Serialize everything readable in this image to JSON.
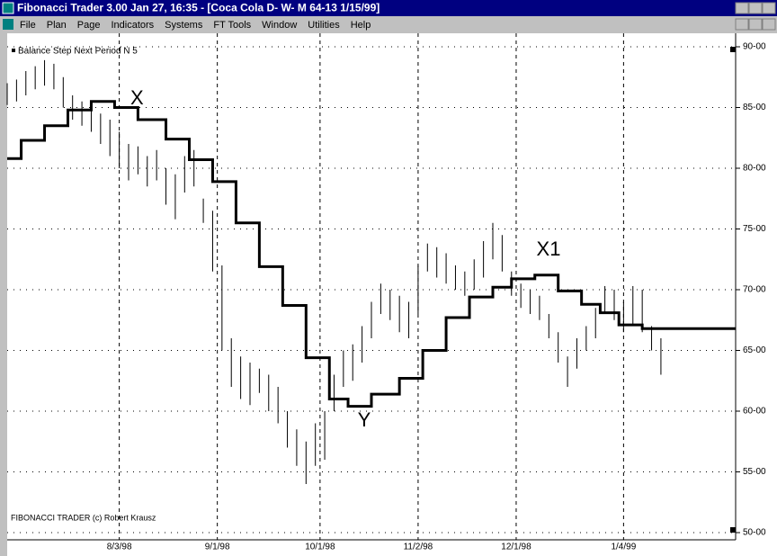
{
  "window": {
    "title": "Fibonacci Trader 3.00 Jan 27,  16:35 - [Coca Cola D- W- M  64-13 1/15/99]"
  },
  "menu": [
    "File",
    "Plan",
    "Page",
    "Indicators",
    "Systems",
    "FT Tools",
    "Window",
    "Utilities",
    "Help"
  ],
  "chart_data": {
    "type": "ohlc",
    "legend": "Balance Step Next Period N 5",
    "annotations": [
      "X",
      "Y",
      "X1"
    ],
    "footer": "FIBONACCI TRADER (c) Robert Krausz",
    "xlim": [
      0,
      156
    ],
    "xticks": [
      {
        "value": 24,
        "label": "8/3/98"
      },
      {
        "value": 45,
        "label": "9/1/98"
      },
      {
        "value": 67,
        "label": "10/1/98"
      },
      {
        "value": 88,
        "label": "11/2/98"
      },
      {
        "value": 109,
        "label": "12/1/98"
      },
      {
        "value": 132,
        "label": "1/4/99"
      }
    ],
    "ylim": [
      50,
      90
    ],
    "yticks": [
      {
        "value": 50,
        "label": "50-00"
      },
      {
        "value": 55,
        "label": "55-00"
      },
      {
        "value": 60,
        "label": "60-00"
      },
      {
        "value": 65,
        "label": "65-00"
      },
      {
        "value": 70,
        "label": "70-00"
      },
      {
        "value": 75,
        "label": "75-00"
      },
      {
        "value": 80,
        "label": "80-00"
      },
      {
        "value": 85,
        "label": "85-00"
      },
      {
        "value": 90,
        "label": "90-00"
      }
    ],
    "grid": true,
    "color": "#000000",
    "x": [
      0,
      2,
      4,
      6,
      8,
      10,
      12,
      14,
      16,
      18,
      20,
      22,
      24,
      26,
      28,
      30,
      32,
      34,
      36,
      38,
      40,
      42,
      44,
      46,
      48,
      50,
      52,
      54,
      56,
      58,
      60,
      62,
      64,
      66,
      68,
      70,
      72,
      74,
      76,
      78,
      80,
      82,
      84,
      86,
      88,
      90,
      92,
      94,
      96,
      98,
      100,
      102,
      104,
      106,
      108,
      110,
      112,
      114,
      116,
      118,
      120,
      122,
      124,
      126,
      128,
      130,
      132,
      134,
      136,
      138,
      140
    ],
    "high": [
      87.0,
      87.3,
      88.0,
      88.4,
      88.9,
      88.6,
      87.5,
      86.0,
      85.5,
      85.2,
      84.5,
      84.0,
      83.0,
      82.0,
      81.8,
      81.0,
      81.5,
      80.0,
      79.5,
      81.0,
      81.5,
      77.5,
      76.5,
      72.0,
      66.0,
      64.5,
      64.0,
      63.5,
      63.0,
      62.0,
      60.0,
      58.5,
      57.5,
      59.0,
      60.0,
      63.0,
      65.0,
      65.5,
      67.0,
      69.0,
      70.5,
      70.0,
      69.5,
      69.0,
      72.0,
      73.8,
      73.5,
      73.0,
      72.0,
      71.5,
      72.5,
      74.0,
      75.5,
      74.5,
      71.5,
      70.5,
      70.0,
      69.5,
      68.0,
      66.5,
      64.5,
      66.0,
      67.0,
      68.5,
      70.3,
      70.0,
      69.0,
      70.3,
      70.0,
      67.0,
      66.0
    ],
    "low": [
      85.2,
      85.5,
      86.0,
      86.5,
      86.8,
      86.5,
      85.0,
      84.0,
      83.5,
      83.0,
      82.0,
      81.0,
      80.0,
      79.0,
      79.5,
      78.5,
      79.0,
      77.0,
      75.8,
      78.0,
      78.5,
      75.5,
      71.5,
      65.0,
      62.0,
      61.0,
      60.5,
      61.5,
      60.0,
      59.0,
      57.0,
      55.5,
      54.0,
      55.5,
      56.0,
      60.0,
      62.0,
      62.5,
      64.0,
      66.0,
      68.0,
      67.5,
      66.5,
      66.0,
      68.0,
      71.5,
      71.0,
      70.5,
      70.0,
      69.5,
      70.0,
      71.0,
      72.5,
      71.5,
      69.5,
      68.5,
      68.0,
      67.5,
      66.0,
      64.0,
      62.0,
      63.5,
      65.0,
      66.0,
      68.0,
      67.5,
      66.5,
      67.0,
      66.5,
      65.0,
      63.0
    ],
    "overlay": {
      "type": "step",
      "name": "Balance Step Next Period N 5",
      "color": "#000000",
      "x": [
        0,
        3,
        8,
        13,
        18,
        23,
        28,
        34,
        39,
        44,
        49,
        54,
        59,
        64,
        69,
        73,
        78,
        84,
        89,
        94,
        99,
        104,
        108,
        113,
        118,
        123,
        127,
        131,
        136
      ],
      "values": [
        80.8,
        82.3,
        83.5,
        84.8,
        85.5,
        85.0,
        84.0,
        82.4,
        80.7,
        78.9,
        75.5,
        71.9,
        68.7,
        64.4,
        61.0,
        60.4,
        61.4,
        62.7,
        65.0,
        67.7,
        69.4,
        70.2,
        70.9,
        71.2,
        69.9,
        68.8,
        68.1,
        67.1,
        66.8
      ]
    }
  }
}
